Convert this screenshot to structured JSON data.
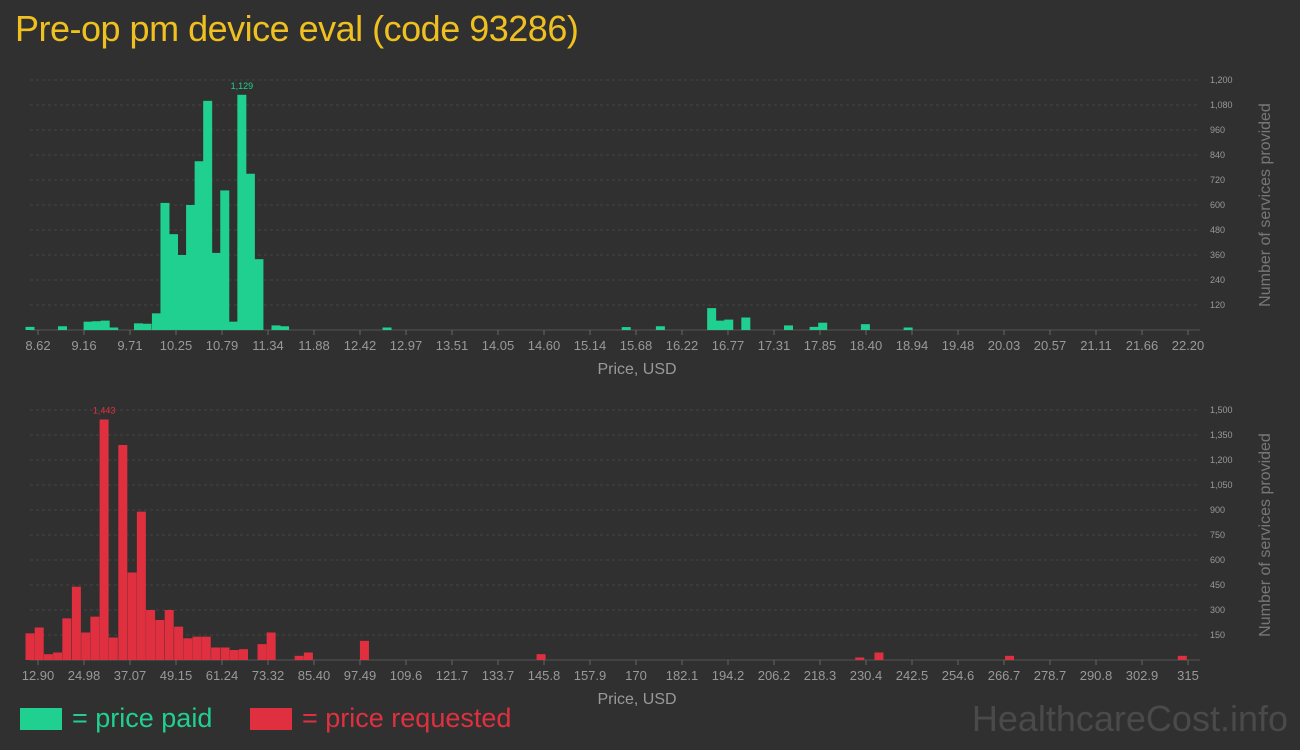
{
  "title": "Pre-op pm device eval (code 93286)",
  "legend": {
    "paid": "= price paid",
    "requested": "= price requested"
  },
  "watermark": "HealthcareCost.info",
  "colors": {
    "paid": "#20d090",
    "requested": "#e03040",
    "title": "#f0c020",
    "background": "#303030",
    "grid": "#444444",
    "axis_text": "#999999"
  },
  "chart_data": [
    {
      "type": "bar",
      "name": "paid",
      "xlabel": "Price, USD",
      "ylabel": "Number of services provided",
      "ylim": [
        0,
        1200
      ],
      "y_ticks": [
        "120",
        "240",
        "360",
        "480",
        "600",
        "720",
        "840",
        "960",
        "1,080",
        "1,200"
      ],
      "x_tick_labels": [
        "8.62",
        "9.16",
        "9.71",
        "10.25",
        "10.79",
        "11.34",
        "11.88",
        "12.42",
        "12.97",
        "13.51",
        "14.05",
        "14.60",
        "15.14",
        "15.68",
        "16.22",
        "16.77",
        "17.31",
        "17.85",
        "18.40",
        "18.94",
        "19.48",
        "20.03",
        "20.57",
        "21.11",
        "21.66",
        "22.20"
      ],
      "max_label": "1,129",
      "x_min": 8.62,
      "x_max": 22.2,
      "bars": [
        {
          "x": 8.62,
          "y": 15
        },
        {
          "x": 9.0,
          "y": 18
        },
        {
          "x": 9.3,
          "y": 40
        },
        {
          "x": 9.4,
          "y": 42
        },
        {
          "x": 9.5,
          "y": 45
        },
        {
          "x": 9.6,
          "y": 12
        },
        {
          "x": 9.89,
          "y": 32
        },
        {
          "x": 9.99,
          "y": 30
        },
        {
          "x": 10.1,
          "y": 80
        },
        {
          "x": 10.2,
          "y": 610
        },
        {
          "x": 10.3,
          "y": 460
        },
        {
          "x": 10.4,
          "y": 360
        },
        {
          "x": 10.5,
          "y": 600
        },
        {
          "x": 10.6,
          "y": 810
        },
        {
          "x": 10.7,
          "y": 1100
        },
        {
          "x": 10.8,
          "y": 370
        },
        {
          "x": 10.9,
          "y": 670
        },
        {
          "x": 11.0,
          "y": 40
        },
        {
          "x": 11.1,
          "y": 1129
        },
        {
          "x": 11.2,
          "y": 750
        },
        {
          "x": 11.3,
          "y": 340
        },
        {
          "x": 11.5,
          "y": 22
        },
        {
          "x": 11.6,
          "y": 18
        },
        {
          "x": 12.8,
          "y": 12
        },
        {
          "x": 15.6,
          "y": 14
        },
        {
          "x": 16.0,
          "y": 18
        },
        {
          "x": 16.6,
          "y": 105
        },
        {
          "x": 16.7,
          "y": 45
        },
        {
          "x": 16.8,
          "y": 50
        },
        {
          "x": 17.0,
          "y": 60
        },
        {
          "x": 17.5,
          "y": 22
        },
        {
          "x": 17.8,
          "y": 15
        },
        {
          "x": 17.9,
          "y": 35
        },
        {
          "x": 18.4,
          "y": 28
        },
        {
          "x": 18.9,
          "y": 12
        }
      ]
    },
    {
      "type": "bar",
      "name": "requested",
      "xlabel": "Price, USD",
      "ylabel": "Number of services provided",
      "ylim": [
        0,
        1500
      ],
      "y_ticks": [
        "150",
        "300",
        "450",
        "600",
        "750",
        "900",
        "1,050",
        "1,200",
        "1,350",
        "1,500"
      ],
      "x_tick_labels": [
        "12.90",
        "24.98",
        "37.07",
        "49.15",
        "61.24",
        "73.32",
        "85.40",
        "97.49",
        "109.6",
        "121.7",
        "133.7",
        "145.8",
        "157.9",
        "170",
        "182.1",
        "194.2",
        "206.2",
        "218.3",
        "230.4",
        "242.5",
        "254.6",
        "266.7",
        "278.7",
        "290.8",
        "302.9",
        "315"
      ],
      "max_label": "1,443",
      "x_min": 12.9,
      "x_max": 315,
      "bars": [
        {
          "x": 12.9,
          "y": 160
        },
        {
          "x": 15.3,
          "y": 195
        },
        {
          "x": 17.7,
          "y": 35
        },
        {
          "x": 20.1,
          "y": 45
        },
        {
          "x": 22.5,
          "y": 250
        },
        {
          "x": 24.98,
          "y": 440
        },
        {
          "x": 27.4,
          "y": 165
        },
        {
          "x": 29.8,
          "y": 260
        },
        {
          "x": 32.2,
          "y": 1443
        },
        {
          "x": 34.6,
          "y": 135
        },
        {
          "x": 37.07,
          "y": 1290
        },
        {
          "x": 39.5,
          "y": 525
        },
        {
          "x": 41.9,
          "y": 890
        },
        {
          "x": 44.3,
          "y": 300
        },
        {
          "x": 46.7,
          "y": 240
        },
        {
          "x": 49.15,
          "y": 300
        },
        {
          "x": 51.6,
          "y": 200
        },
        {
          "x": 54.0,
          "y": 130
        },
        {
          "x": 56.4,
          "y": 140
        },
        {
          "x": 58.8,
          "y": 140
        },
        {
          "x": 61.24,
          "y": 75
        },
        {
          "x": 63.7,
          "y": 75
        },
        {
          "x": 66.1,
          "y": 60
        },
        {
          "x": 68.5,
          "y": 65
        },
        {
          "x": 73.32,
          "y": 95
        },
        {
          "x": 75.7,
          "y": 165
        },
        {
          "x": 83.0,
          "y": 25
        },
        {
          "x": 85.4,
          "y": 45
        },
        {
          "x": 100.0,
          "y": 115
        },
        {
          "x": 146.0,
          "y": 35
        },
        {
          "x": 229.0,
          "y": 15
        },
        {
          "x": 234.0,
          "y": 45
        },
        {
          "x": 268.0,
          "y": 25
        },
        {
          "x": 313.0,
          "y": 25
        }
      ]
    }
  ]
}
